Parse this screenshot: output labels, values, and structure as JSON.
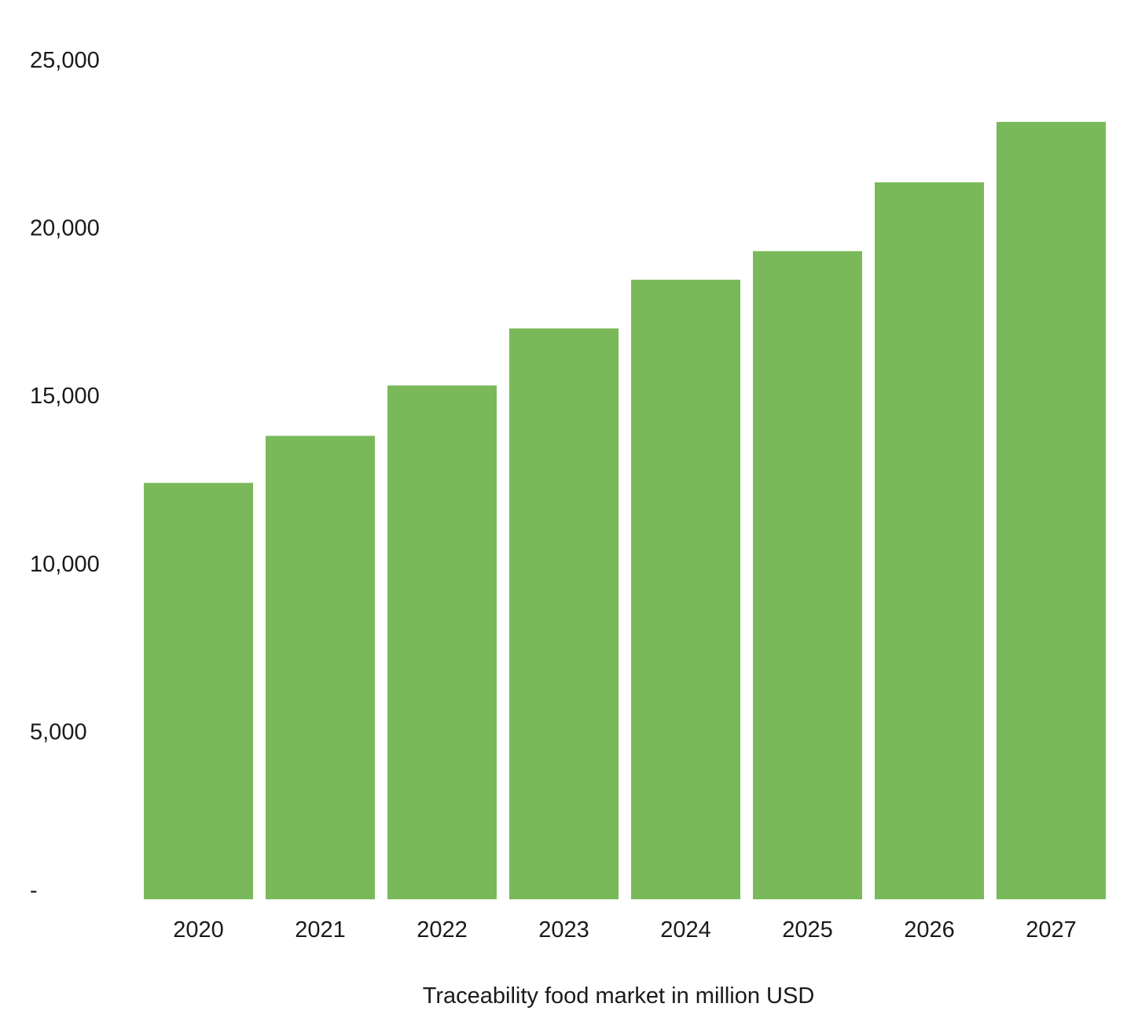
{
  "chart_data": {
    "type": "bar",
    "title": "",
    "xlabel": "Traceability food market in million USD",
    "ylabel": "",
    "categories": [
      "2020",
      "2021",
      "2022",
      "2023",
      "2024",
      "2025",
      "2026",
      "2027"
    ],
    "series": [
      {
        "values": [
          12400,
          13800,
          15300,
          17000,
          18450,
          19300,
          21350,
          23150
        ],
        "color": "#79b959"
      }
    ],
    "ylim": [
      0,
      25000
    ],
    "yticks": [
      0,
      5000,
      10000,
      15000,
      20000,
      25000
    ],
    "ytick_labels": [
      "-",
      "5,000",
      "10,000",
      "15,000",
      "20,000",
      "25,000"
    ],
    "grid": false,
    "legend": "none"
  }
}
